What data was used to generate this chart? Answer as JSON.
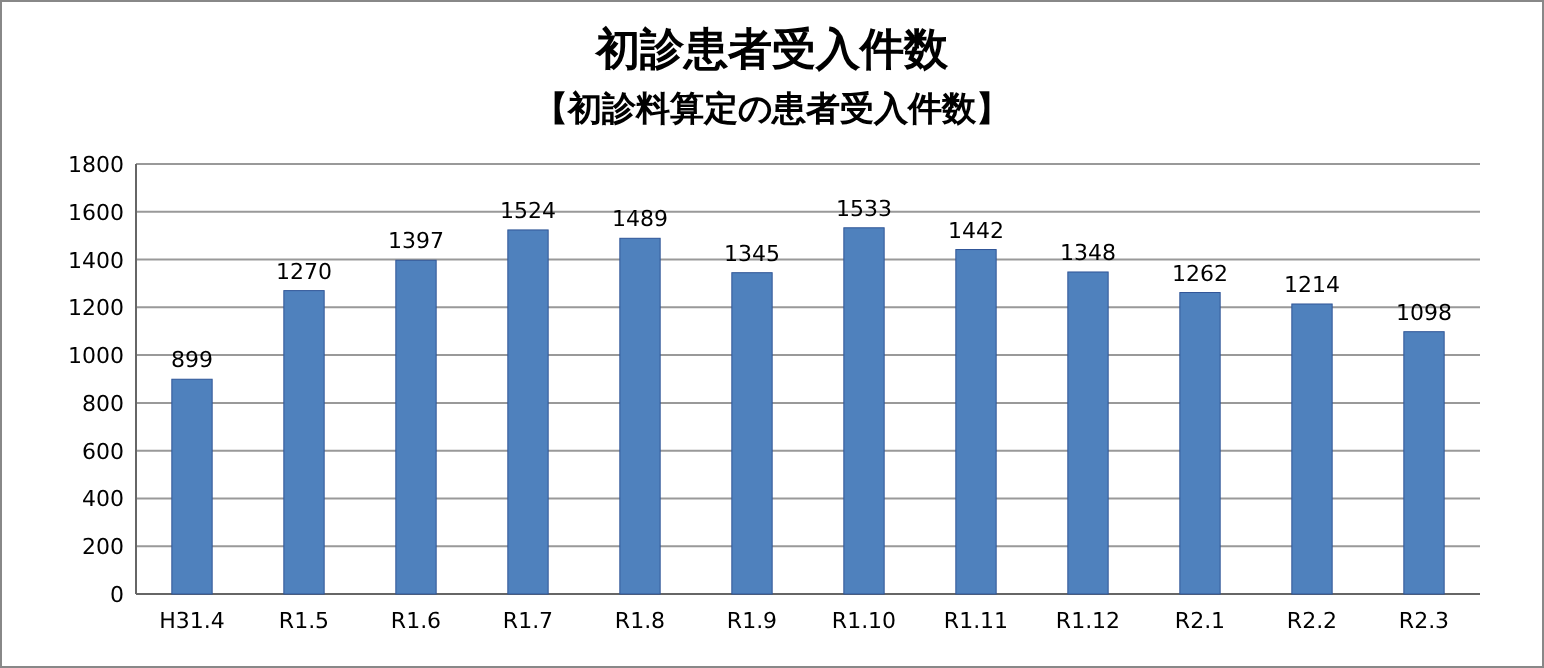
{
  "chart_data": {
    "type": "bar",
    "title": "初診患者受入件数",
    "subtitle": "【初診料算定の患者受入件数】",
    "categories": [
      "H31.4",
      "R1.5",
      "R1.6",
      "R1.7",
      "R1.8",
      "R1.9",
      "R1.10",
      "R1.11",
      "R1.12",
      "R2.1",
      "R2.2",
      "R2.3"
    ],
    "values": [
      899,
      1270,
      1397,
      1524,
      1489,
      1345,
      1533,
      1442,
      1348,
      1262,
      1214,
      1098
    ],
    "color": "#4f81bd",
    "ylim": [
      0,
      1800
    ],
    "yticks": [
      0,
      200,
      400,
      600,
      800,
      1000,
      1200,
      1400,
      1600,
      1800
    ],
    "grid": "y",
    "data_labels": true
  }
}
